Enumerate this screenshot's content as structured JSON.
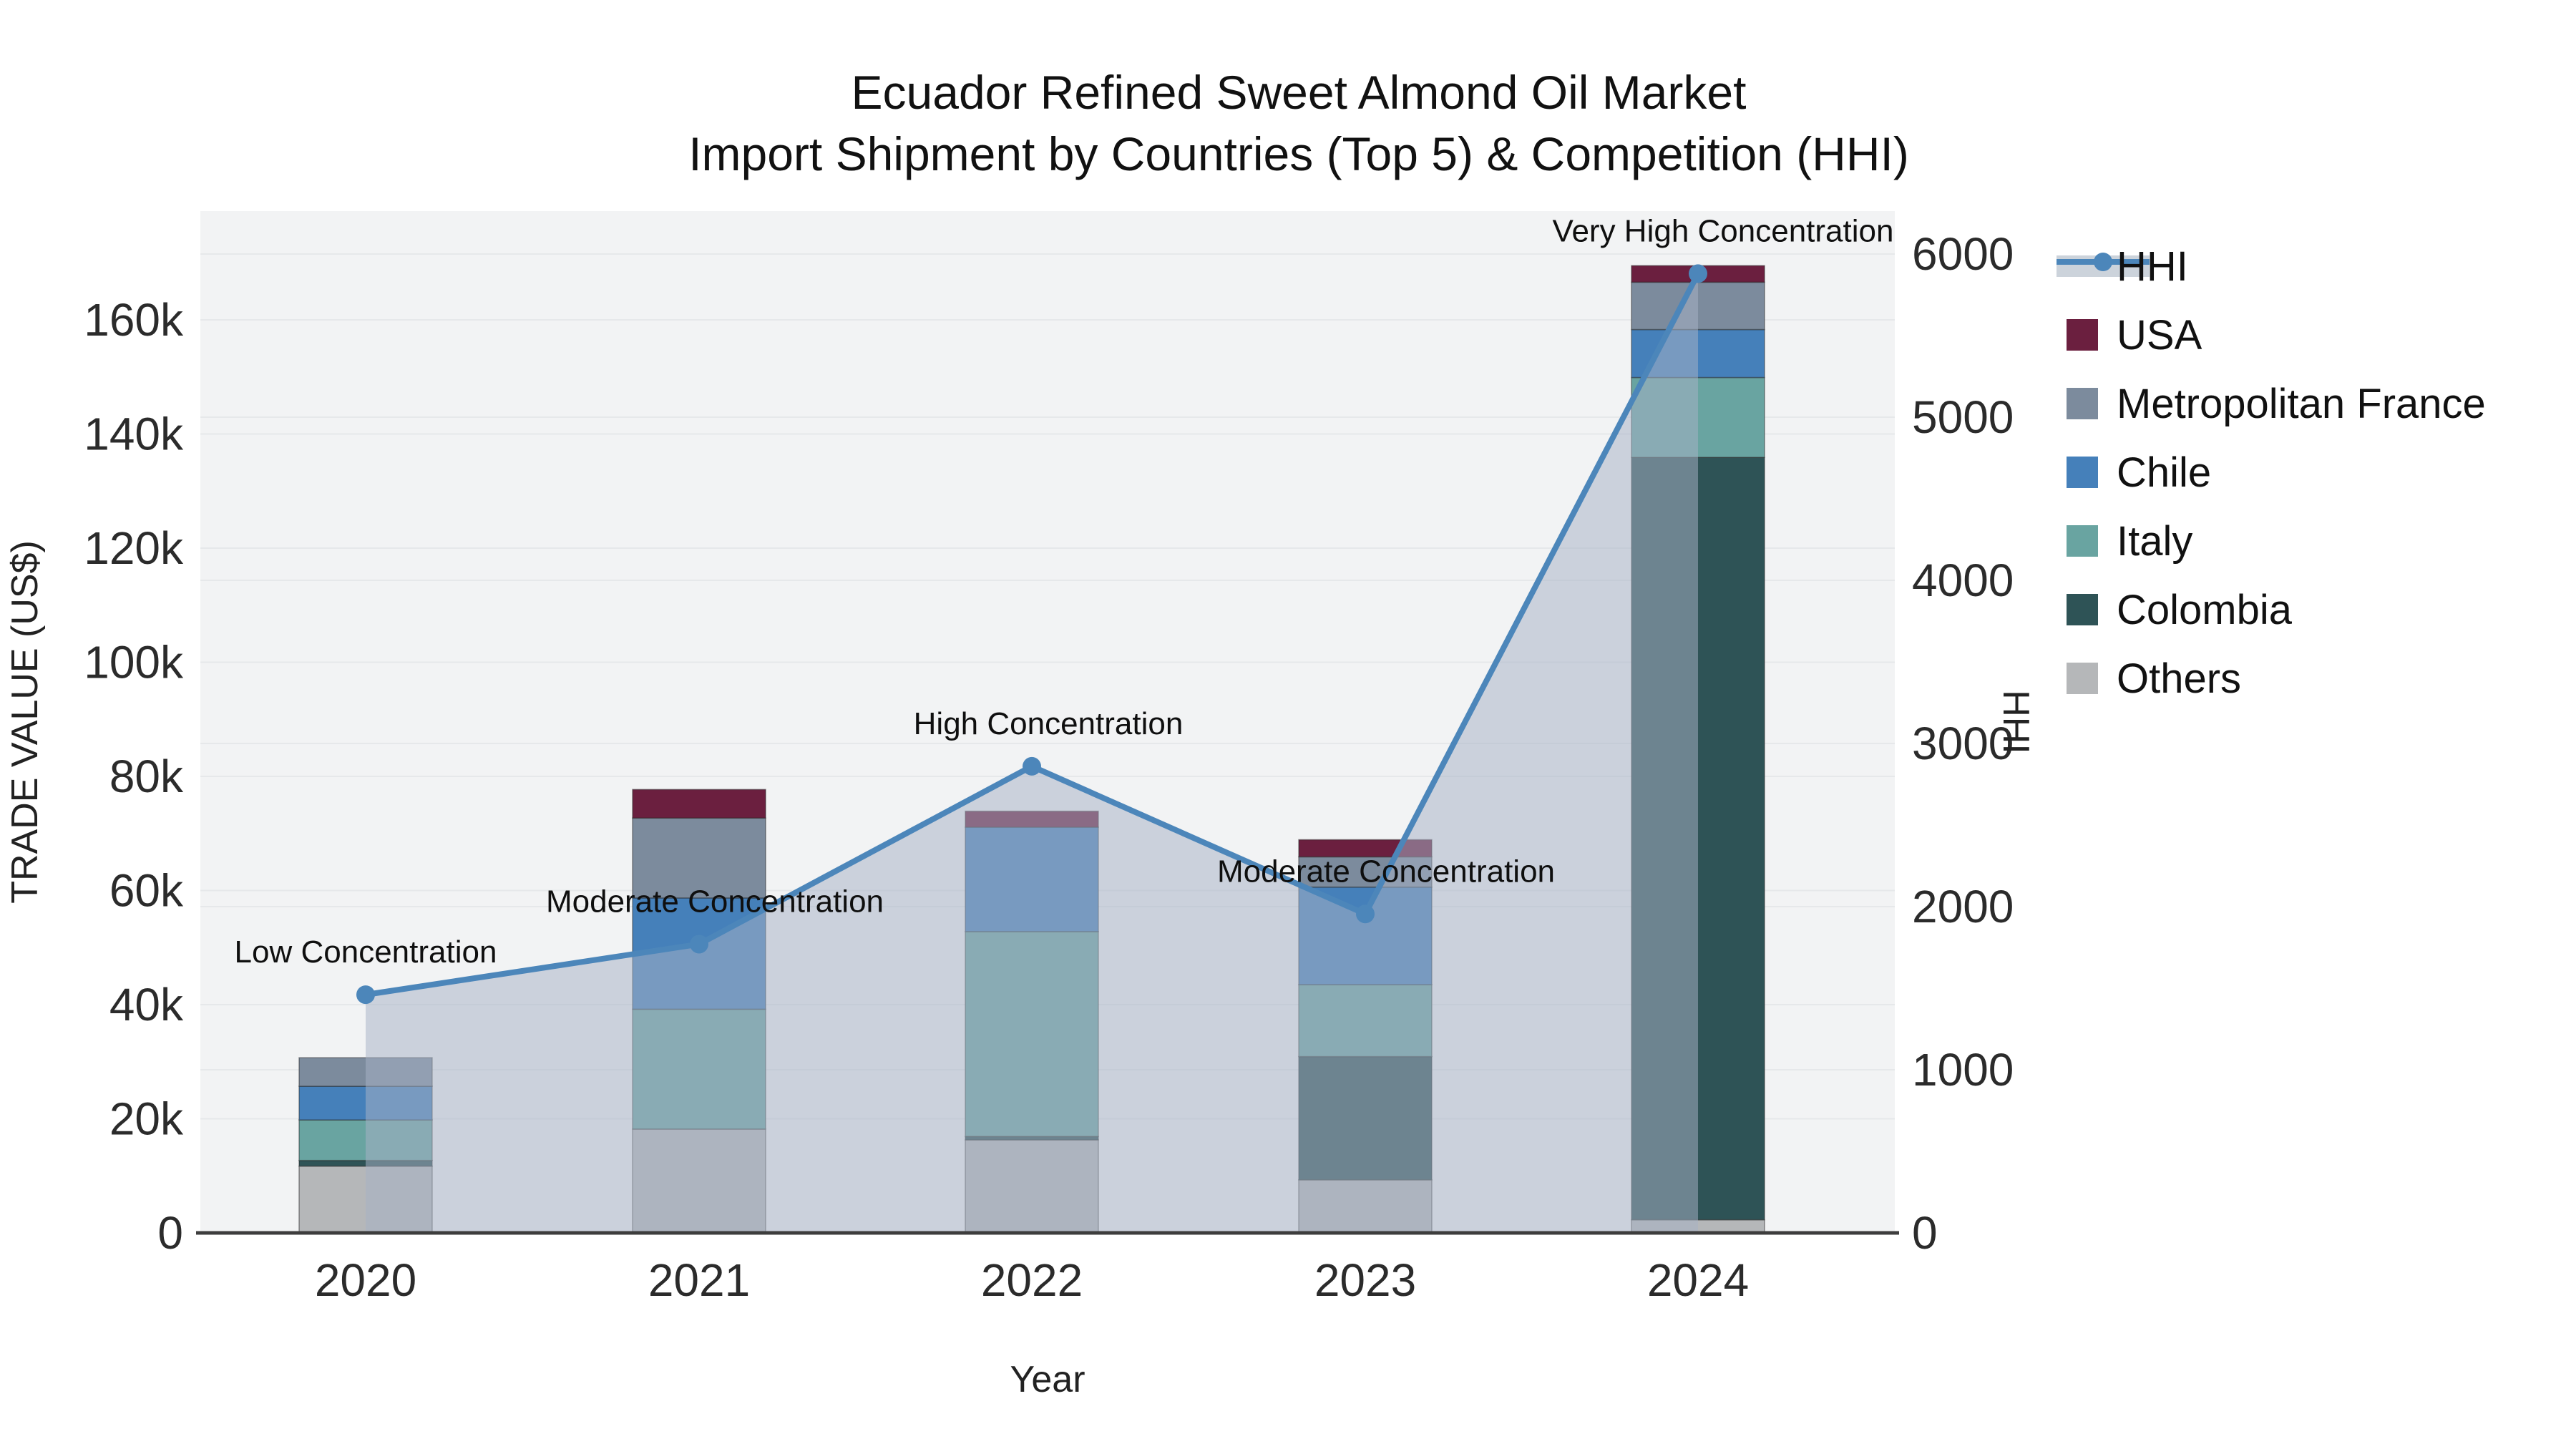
{
  "title": {
    "line1": "Ecuador Refined Sweet Almond Oil Market",
    "line2": "Import Shipment by Countries (Top 5) & Competition (HHI)"
  },
  "axes": {
    "x_title": "Year",
    "y_left_title": "TRADE VALUE (US$)",
    "y_right_title": "HHI",
    "y_left_tick_labels": [
      "0",
      "20k",
      "40k",
      "60k",
      "80k",
      "100k",
      "120k",
      "140k",
      "160k"
    ],
    "y_left_tick_values": [
      0,
      20000,
      40000,
      60000,
      80000,
      100000,
      120000,
      140000,
      160000
    ],
    "y_right_tick_labels": [
      "0",
      "1000",
      "2000",
      "3000",
      "4000",
      "5000",
      "6000"
    ],
    "y_right_tick_values": [
      0,
      1000,
      2000,
      3000,
      4000,
      5000,
      6000
    ]
  },
  "legend": {
    "items": [
      {
        "label": "HHI",
        "color": "#4c86ba",
        "type": "line"
      },
      {
        "label": "USA",
        "color": "#6b1f3f",
        "type": "swatch"
      },
      {
        "label": "Metropolitan France",
        "color": "#7c8b9d",
        "type": "swatch"
      },
      {
        "label": "Chile",
        "color": "#4580ba",
        "type": "swatch"
      },
      {
        "label": "Italy",
        "color": "#69a4a1",
        "type": "swatch"
      },
      {
        "label": "Colombia",
        "color": "#2e5356",
        "type": "swatch"
      },
      {
        "label": "Others",
        "color": "#b5b7b9",
        "type": "swatch"
      }
    ]
  },
  "chart_data": {
    "type": "bar",
    "stacked": true,
    "unit": "US$",
    "title": "Ecuador Refined Sweet Almond Oil Market",
    "subtitle": "Import Shipment by Countries (Top 5) & Competition (HHI)",
    "xlabel": "Year",
    "ylabel": "TRADE VALUE (US$)",
    "ylabel_right": "HHI",
    "categories": [
      "2020",
      "2021",
      "2022",
      "2023",
      "2024"
    ],
    "stack_order": [
      "Others",
      "Colombia",
      "Italy",
      "Chile",
      "Metropolitan France",
      "USA"
    ],
    "series": [
      {
        "name": "USA",
        "color": "#6b1f3f",
        "values": [
          0,
          5000,
          2800,
          3000,
          2900
        ]
      },
      {
        "name": "Metropolitan France",
        "color": "#7c8b9d",
        "values": [
          5000,
          14000,
          0,
          5300,
          8300
        ]
      },
      {
        "name": "Chile",
        "color": "#4580ba",
        "values": [
          5900,
          19500,
          18300,
          17100,
          8400
        ]
      },
      {
        "name": "Italy",
        "color": "#69a4a1",
        "values": [
          7100,
          21000,
          35900,
          12600,
          14000
        ]
      },
      {
        "name": "Colombia",
        "color": "#2e5356",
        "values": [
          1000,
          0,
          600,
          21600,
          133600
        ]
      },
      {
        "name": "Others",
        "color": "#b5b7b9",
        "values": [
          11700,
          18200,
          16300,
          9300,
          2300
        ]
      }
    ],
    "totals": [
      30700,
      77700,
      73900,
      68900,
      169500
    ],
    "hhi_line": {
      "name": "HHI",
      "color": "#4c86ba",
      "area_fill": "rgba(167,178,197,0.52)",
      "values": [
        1460,
        1770,
        2860,
        1955,
        5880
      ],
      "point_labels": [
        "Low Concentration",
        "Moderate Concentration",
        "High Concentration",
        "Moderate Concentration",
        "Very High Concentration"
      ]
    },
    "ylim_left": [
      0,
      176000
    ],
    "ylim_right": [
      0,
      6000
    ],
    "grid": true,
    "legend_position": "right",
    "plot_background": "#f2f3f4",
    "gridline_color": "#e6e8ea",
    "axisline_color": "#3d3d3d"
  }
}
